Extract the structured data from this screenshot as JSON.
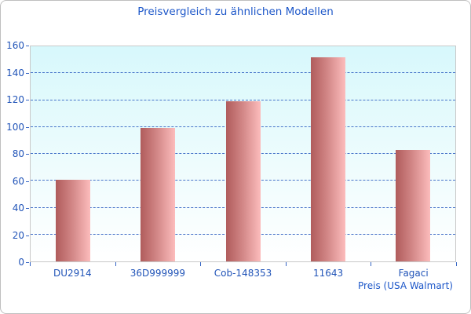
{
  "chart_data": {
    "type": "bar",
    "title": "Preisvergleich zu ähnlichen Modellen",
    "categories": [
      "DU2914",
      "36D999999",
      "Cob-148353",
      "11643",
      "Fagaci"
    ],
    "values": [
      61,
      99,
      119,
      152,
      83
    ],
    "xlabel": "Preis (USA Walmart)",
    "ylabel": "",
    "ylim": [
      0,
      160
    ],
    "yticks": [
      0,
      20,
      40,
      60,
      80,
      100,
      120,
      140,
      160
    ],
    "grid": "horizontal-dashed",
    "legend": "none",
    "colors": {
      "title_text": "#1d57c9",
      "axis_text": "#2154b8",
      "gridline": "#3565c4",
      "bar_gradient_left": "#b05c5c",
      "bar_gradient_right": "#fcbcbc",
      "plot_bg_top": "#d7f8fc",
      "plot_bg_bottom": "#ffffff",
      "plot_border": "#c9c9c9",
      "frame_border": "#bfbfbf"
    }
  }
}
